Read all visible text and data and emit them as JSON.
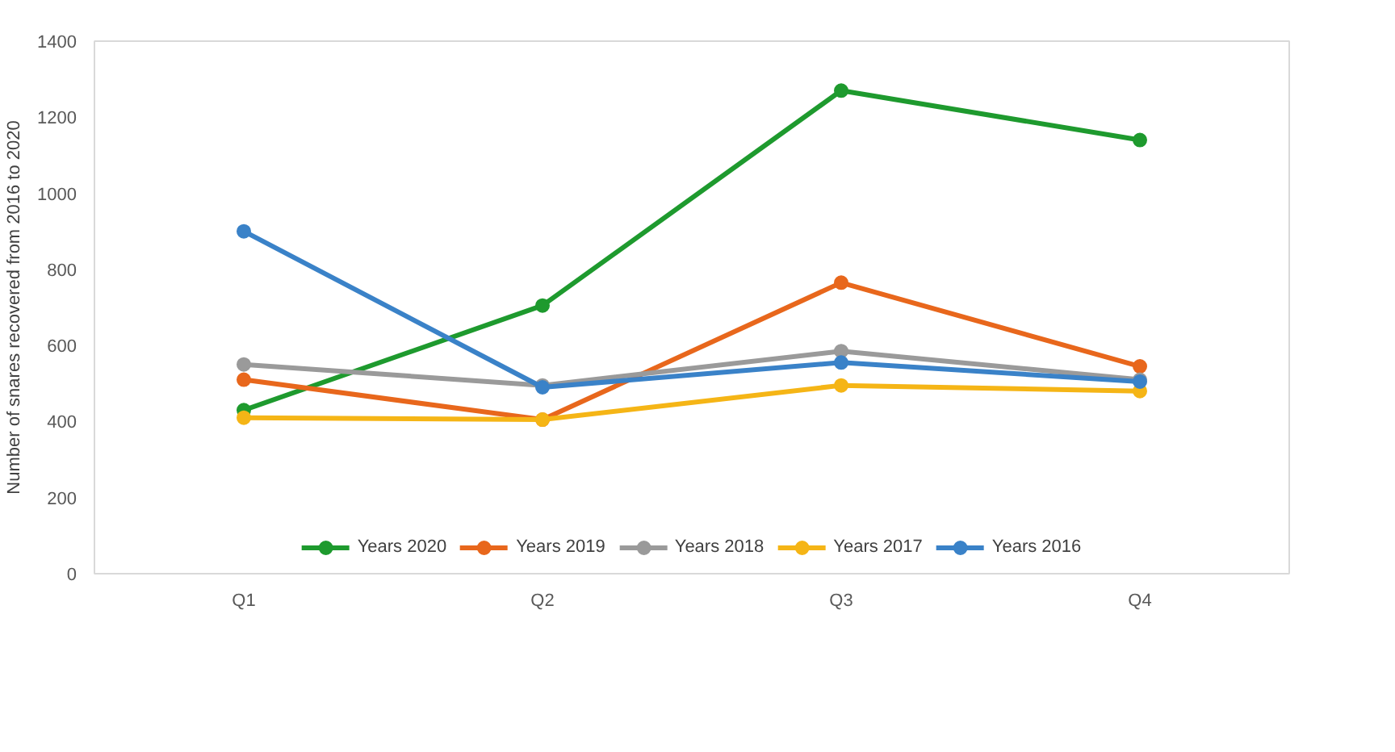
{
  "chart_data": {
    "type": "line",
    "ylabel": "Number of snares recovered from 2016 to 2020",
    "categories": [
      "Q1",
      "Q2",
      "Q3",
      "Q4"
    ],
    "series": [
      {
        "name": "Years 2020",
        "color": "#1e9a2e",
        "values": [
          430,
          705,
          1270,
          1140
        ]
      },
      {
        "name": "Years 2019",
        "color": "#e8671c",
        "values": [
          510,
          405,
          765,
          545
        ]
      },
      {
        "name": "Years 2018",
        "color": "#9a9a9a",
        "values": [
          550,
          495,
          585,
          510
        ]
      },
      {
        "name": "Years 2017",
        "color": "#f5b516",
        "values": [
          410,
          405,
          495,
          480
        ]
      },
      {
        "name": "Years 2016",
        "color": "#3a82c8",
        "values": [
          900,
          490,
          555,
          505
        ]
      }
    ],
    "ylim": [
      0,
      1400
    ],
    "yticks": [
      0,
      200,
      400,
      600,
      800,
      1000,
      1200,
      1400
    ],
    "grid": false,
    "legend": "bottom",
    "marker": "circle",
    "line_style": "solid"
  }
}
